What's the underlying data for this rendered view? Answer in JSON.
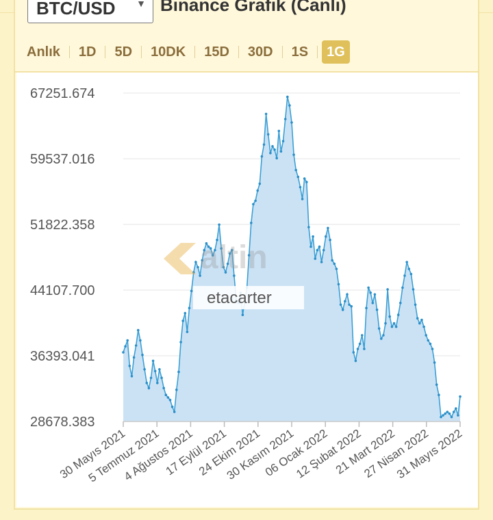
{
  "header": {
    "pair_value": "BTC/USD",
    "title": "Binance Grafik (Canlı)"
  },
  "tabs": [
    {
      "label": "Anlık",
      "active": false
    },
    {
      "label": "1D",
      "active": false
    },
    {
      "label": "5D",
      "active": false
    },
    {
      "label": "10DK",
      "active": false
    },
    {
      "label": "15D",
      "active": false
    },
    {
      "label": "30D",
      "active": false
    },
    {
      "label": "1S",
      "active": false
    },
    {
      "label": "1G",
      "active": true
    }
  ],
  "watermark": "altin",
  "credit": "etacarter",
  "colors": {
    "line": "#3b9fd4",
    "fill": "#c8e0f4",
    "accent": "#dfc05a",
    "tab_text": "#8a6d3b"
  },
  "chart_data": {
    "type": "area",
    "ylim": [
      28678.383,
      67251.674
    ],
    "y_ticks": [
      "67251.674",
      "59537.016",
      "51822.358",
      "44107.700",
      "36393.041",
      "28678.383"
    ],
    "x_tick_labels": [
      "30 Mayıs 2021",
      "5 Temmuz 2021",
      "4 Ağustos 2021",
      "17 Eylül 2021",
      "24 Ekim 2021",
      "30 Kasım 2021",
      "06 Ocak 2022",
      "12 Şubat 2022",
      "21 Mart 2022",
      "27 Nisan 2022",
      "31 Mayıs 2022"
    ],
    "grid": true,
    "values": [
      36800,
      37500,
      38200,
      35200,
      34000,
      36200,
      37600,
      39400,
      38200,
      36500,
      34800,
      33200,
      32600,
      33800,
      35800,
      34600,
      33200,
      34800,
      33800,
      32600,
      31800,
      31500,
      31200,
      30400,
      29800,
      32400,
      34500,
      38000,
      40500,
      41400,
      39200,
      42000,
      44000,
      46200,
      47400,
      46800,
      45800,
      47600,
      48800,
      49600,
      49200,
      49000,
      48200,
      48800,
      50000,
      51800,
      49000,
      46800,
      46200,
      47200,
      48400,
      48800,
      45800,
      43000,
      42600,
      43800,
      41200,
      42800,
      44400,
      48200,
      52000,
      54200,
      54600,
      55800,
      56600,
      59800,
      61200,
      64800,
      62400,
      60200,
      61000,
      60600,
      59600,
      62800,
      60400,
      61600,
      64200,
      66800,
      65800,
      63800,
      60000,
      58200,
      57400,
      56200,
      54800,
      57200,
      56800,
      51500,
      49200,
      50400,
      47800,
      48800,
      49200,
      47400,
      48800,
      50400,
      51400,
      50000,
      47600,
      47200,
      46600,
      44800,
      42400,
      41800,
      42800,
      43600,
      42400,
      42200,
      36800,
      35800,
      37200,
      37800,
      38800,
      37200,
      42000,
      44400,
      43800,
      42600,
      43600,
      41800,
      39600,
      38400,
      38800,
      40200,
      44200,
      41000,
      39800,
      40200,
      39800,
      41200,
      42600,
      44400,
      45800,
      47400,
      46600,
      46000,
      44200,
      42400,
      40800,
      40200,
      40600,
      39800,
      38800,
      38200,
      37800,
      37200,
      35600,
      33000,
      31800,
      29200,
      29400,
      29600,
      29800,
      29600,
      29200,
      29800,
      30200,
      29400,
      31600
    ]
  }
}
